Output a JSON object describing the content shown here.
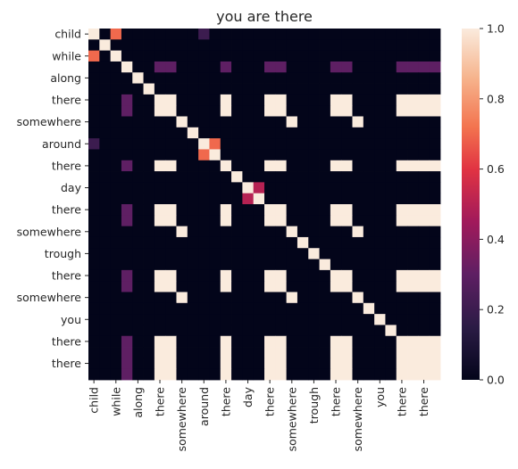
{
  "chart_data": {
    "type": "heatmap",
    "title": "you are there",
    "xlabel": "",
    "ylabel": "",
    "rows": [
      "child",
      "",
      "while",
      "",
      "along",
      "",
      "there",
      "",
      "somewhere",
      "",
      "around",
      "",
      "there",
      "",
      "day",
      "",
      "there",
      "",
      "somewhere",
      "",
      "trough",
      "",
      "there",
      "",
      "somewhere",
      "",
      "you",
      "",
      "there",
      "",
      "there",
      ""
    ],
    "cols": [
      "child",
      "",
      "while",
      "",
      "along",
      "",
      "there",
      "",
      "somewhere",
      "",
      "around",
      "",
      "there",
      "",
      "day",
      "",
      "there",
      "",
      "somewhere",
      "",
      "trough",
      "",
      "there",
      "",
      "somewhere",
      "",
      "you",
      "",
      "there",
      "",
      "there",
      ""
    ],
    "x_tick_labels": [
      "child",
      "while",
      "along",
      "there",
      "somewhere",
      "around",
      "there",
      "day",
      "there",
      "somewhere",
      "trough",
      "there",
      "somewhere",
      "you",
      "there",
      "there"
    ],
    "y_tick_labels": [
      "child",
      "while",
      "along",
      "there",
      "somewhere",
      "around",
      "there",
      "day",
      "there",
      "somewhere",
      "trough",
      "there",
      "somewhere",
      "you",
      "there",
      "there"
    ],
    "colorbar": {
      "min": 0.0,
      "max": 1.0,
      "ticks": [
        "0.0",
        "0.2",
        "0.4",
        "0.6",
        "0.8",
        "1.0"
      ]
    },
    "colormap": "rocket",
    "grid": false,
    "legend": "colorbar-right",
    "matrix": [
      [
        1,
        0,
        0.7,
        0,
        0,
        0,
        0,
        0,
        0,
        0,
        0.2,
        0,
        0,
        0,
        0,
        0,
        0,
        0,
        0,
        0,
        0,
        0,
        0,
        0,
        0,
        0,
        0,
        0,
        0,
        0,
        0,
        0
      ],
      [
        0,
        1,
        0,
        0,
        0,
        0,
        0,
        0,
        0,
        0,
        0,
        0,
        0,
        0,
        0,
        0,
        0,
        0,
        0,
        0,
        0,
        0,
        0,
        0,
        0,
        0,
        0,
        0,
        0,
        0,
        0,
        0
      ],
      [
        0.7,
        0,
        1,
        0,
        0,
        0,
        0,
        0,
        0,
        0,
        0,
        0,
        0,
        0,
        0,
        0,
        0,
        0,
        0,
        0,
        0,
        0,
        0,
        0,
        0,
        0,
        0,
        0,
        0,
        0,
        0,
        0
      ],
      [
        0,
        0,
        0,
        1,
        0,
        0,
        0.3,
        0.3,
        0,
        0,
        0,
        0,
        0.3,
        0,
        0,
        0,
        0.3,
        0.3,
        0,
        0,
        0,
        0,
        0.3,
        0.3,
        0,
        0,
        0,
        0,
        0.3,
        0.3,
        0.3,
        0.3
      ],
      [
        0,
        0,
        0,
        0,
        1,
        0,
        0,
        0,
        0,
        0,
        0,
        0,
        0,
        0,
        0,
        0,
        0,
        0,
        0,
        0,
        0,
        0,
        0,
        0,
        0,
        0,
        0,
        0,
        0,
        0,
        0,
        0
      ],
      [
        0,
        0,
        0,
        0,
        0,
        1,
        0,
        0,
        0,
        0,
        0,
        0,
        0,
        0,
        0,
        0,
        0,
        0,
        0,
        0,
        0,
        0,
        0,
        0,
        0,
        0,
        0,
        0,
        0,
        0,
        0,
        0
      ],
      [
        0,
        0,
        0,
        0.3,
        0,
        0,
        1,
        1,
        0,
        0,
        0,
        0,
        1,
        0,
        0,
        0,
        1,
        1,
        0,
        0,
        0,
        0,
        1,
        1,
        0,
        0,
        0,
        0,
        1,
        1,
        1,
        1
      ],
      [
        0,
        0,
        0,
        0.3,
        0,
        0,
        1,
        1,
        0,
        0,
        0,
        0,
        1,
        0,
        0,
        0,
        1,
        1,
        0,
        0,
        0,
        0,
        1,
        1,
        0,
        0,
        0,
        0,
        1,
        1,
        1,
        1
      ],
      [
        0,
        0,
        0,
        0,
        0,
        0,
        0,
        0,
        1,
        0,
        0,
        0,
        0,
        0,
        0,
        0,
        0,
        0,
        1,
        0,
        0,
        0,
        0,
        0,
        1,
        0,
        0,
        0,
        0,
        0,
        0,
        0
      ],
      [
        0,
        0,
        0,
        0,
        0,
        0,
        0,
        0,
        0,
        1,
        0,
        0,
        0,
        0,
        0,
        0,
        0,
        0,
        0,
        0,
        0,
        0,
        0,
        0,
        0,
        0,
        0,
        0,
        0,
        0,
        0,
        0
      ],
      [
        0.2,
        0,
        0,
        0,
        0,
        0,
        0,
        0,
        0,
        0,
        1,
        0.7,
        0,
        0,
        0,
        0,
        0,
        0,
        0,
        0,
        0,
        0,
        0,
        0,
        0,
        0,
        0,
        0,
        0,
        0,
        0,
        0
      ],
      [
        0,
        0,
        0,
        0,
        0,
        0,
        0,
        0,
        0,
        0,
        0.7,
        1,
        0,
        0,
        0,
        0,
        0,
        0,
        0,
        0,
        0,
        0,
        0,
        0,
        0,
        0,
        0,
        0,
        0,
        0,
        0,
        0
      ],
      [
        0,
        0,
        0,
        0.3,
        0,
        0,
        1,
        1,
        0,
        0,
        0,
        0,
        1,
        0,
        0,
        0,
        1,
        1,
        0,
        0,
        0,
        0,
        1,
        1,
        0,
        0,
        0,
        0,
        1,
        1,
        1,
        1
      ],
      [
        0,
        0,
        0,
        0,
        0,
        0,
        0,
        0,
        0,
        0,
        0,
        0,
        0,
        1,
        0,
        0,
        0,
        0,
        0,
        0,
        0,
        0,
        0,
        0,
        0,
        0,
        0,
        0,
        0,
        0,
        0,
        0
      ],
      [
        0,
        0,
        0,
        0,
        0,
        0,
        0,
        0,
        0,
        0,
        0,
        0,
        0,
        0,
        1,
        0.5,
        0,
        0,
        0,
        0,
        0,
        0,
        0,
        0,
        0,
        0,
        0,
        0,
        0,
        0,
        0,
        0
      ],
      [
        0,
        0,
        0,
        0,
        0,
        0,
        0,
        0,
        0,
        0,
        0,
        0,
        0,
        0,
        0.5,
        1,
        0,
        0,
        0,
        0,
        0,
        0,
        0,
        0,
        0,
        0,
        0,
        0,
        0,
        0,
        0,
        0
      ],
      [
        0,
        0,
        0,
        0.3,
        0,
        0,
        1,
        1,
        0,
        0,
        0,
        0,
        1,
        0,
        0,
        0,
        1,
        1,
        0,
        0,
        0,
        0,
        1,
        1,
        0,
        0,
        0,
        0,
        1,
        1,
        1,
        1
      ],
      [
        0,
        0,
        0,
        0.3,
        0,
        0,
        1,
        1,
        0,
        0,
        0,
        0,
        1,
        0,
        0,
        0,
        1,
        1,
        0,
        0,
        0,
        0,
        1,
        1,
        0,
        0,
        0,
        0,
        1,
        1,
        1,
        1
      ],
      [
        0,
        0,
        0,
        0,
        0,
        0,
        0,
        0,
        1,
        0,
        0,
        0,
        0,
        0,
        0,
        0,
        0,
        0,
        1,
        0,
        0,
        0,
        0,
        0,
        1,
        0,
        0,
        0,
        0,
        0,
        0,
        0
      ],
      [
        0,
        0,
        0,
        0,
        0,
        0,
        0,
        0,
        0,
        0,
        0,
        0,
        0,
        0,
        0,
        0,
        0,
        0,
        0,
        1,
        0,
        0,
        0,
        0,
        0,
        0,
        0,
        0,
        0,
        0,
        0,
        0
      ],
      [
        0,
        0,
        0,
        0,
        0,
        0,
        0,
        0,
        0,
        0,
        0,
        0,
        0,
        0,
        0,
        0,
        0,
        0,
        0,
        0,
        1,
        0,
        0,
        0,
        0,
        0,
        0,
        0,
        0,
        0,
        0,
        0
      ],
      [
        0,
        0,
        0,
        0,
        0,
        0,
        0,
        0,
        0,
        0,
        0,
        0,
        0,
        0,
        0,
        0,
        0,
        0,
        0,
        0,
        0,
        1,
        0,
        0,
        0,
        0,
        0,
        0,
        0,
        0,
        0,
        0
      ],
      [
        0,
        0,
        0,
        0.3,
        0,
        0,
        1,
        1,
        0,
        0,
        0,
        0,
        1,
        0,
        0,
        0,
        1,
        1,
        0,
        0,
        0,
        0,
        1,
        1,
        0,
        0,
        0,
        0,
        1,
        1,
        1,
        1
      ],
      [
        0,
        0,
        0,
        0.3,
        0,
        0,
        1,
        1,
        0,
        0,
        0,
        0,
        1,
        0,
        0,
        0,
        1,
        1,
        0,
        0,
        0,
        0,
        1,
        1,
        0,
        0,
        0,
        0,
        1,
        1,
        1,
        1
      ],
      [
        0,
        0,
        0,
        0,
        0,
        0,
        0,
        0,
        1,
        0,
        0,
        0,
        0,
        0,
        0,
        0,
        0,
        0,
        1,
        0,
        0,
        0,
        0,
        0,
        1,
        0,
        0,
        0,
        0,
        0,
        0,
        0
      ],
      [
        0,
        0,
        0,
        0,
        0,
        0,
        0,
        0,
        0,
        0,
        0,
        0,
        0,
        0,
        0,
        0,
        0,
        0,
        0,
        0,
        0,
        0,
        0,
        0,
        0,
        1,
        0,
        0,
        0,
        0,
        0,
        0
      ],
      [
        0,
        0,
        0,
        0,
        0,
        0,
        0,
        0,
        0,
        0,
        0,
        0,
        0,
        0,
        0,
        0,
        0,
        0,
        0,
        0,
        0,
        0,
        0,
        0,
        0,
        0,
        1,
        0,
        0,
        0,
        0,
        0
      ],
      [
        0,
        0,
        0,
        0,
        0,
        0,
        0,
        0,
        0,
        0,
        0,
        0,
        0,
        0,
        0,
        0,
        0,
        0,
        0,
        0,
        0,
        0,
        0,
        0,
        0,
        0,
        0,
        1,
        0,
        0,
        0,
        0
      ],
      [
        0,
        0,
        0,
        0.3,
        0,
        0,
        1,
        1,
        0,
        0,
        0,
        0,
        1,
        0,
        0,
        0,
        1,
        1,
        0,
        0,
        0,
        0,
        1,
        1,
        0,
        0,
        0,
        0,
        1,
        1,
        1,
        1
      ],
      [
        0,
        0,
        0,
        0.3,
        0,
        0,
        1,
        1,
        0,
        0,
        0,
        0,
        1,
        0,
        0,
        0,
        1,
        1,
        0,
        0,
        0,
        0,
        1,
        1,
        0,
        0,
        0,
        0,
        1,
        1,
        1,
        1
      ],
      [
        0,
        0,
        0,
        0.3,
        0,
        0,
        1,
        1,
        0,
        0,
        0,
        0,
        1,
        0,
        0,
        0,
        1,
        1,
        0,
        0,
        0,
        0,
        1,
        1,
        0,
        0,
        0,
        0,
        1,
        1,
        1,
        1
      ],
      [
        0,
        0,
        0,
        0.3,
        0,
        0,
        1,
        1,
        0,
        0,
        0,
        0,
        1,
        0,
        0,
        0,
        1,
        1,
        0,
        0,
        0,
        0,
        1,
        1,
        0,
        0,
        0,
        0,
        1,
        1,
        1,
        1
      ]
    ]
  }
}
